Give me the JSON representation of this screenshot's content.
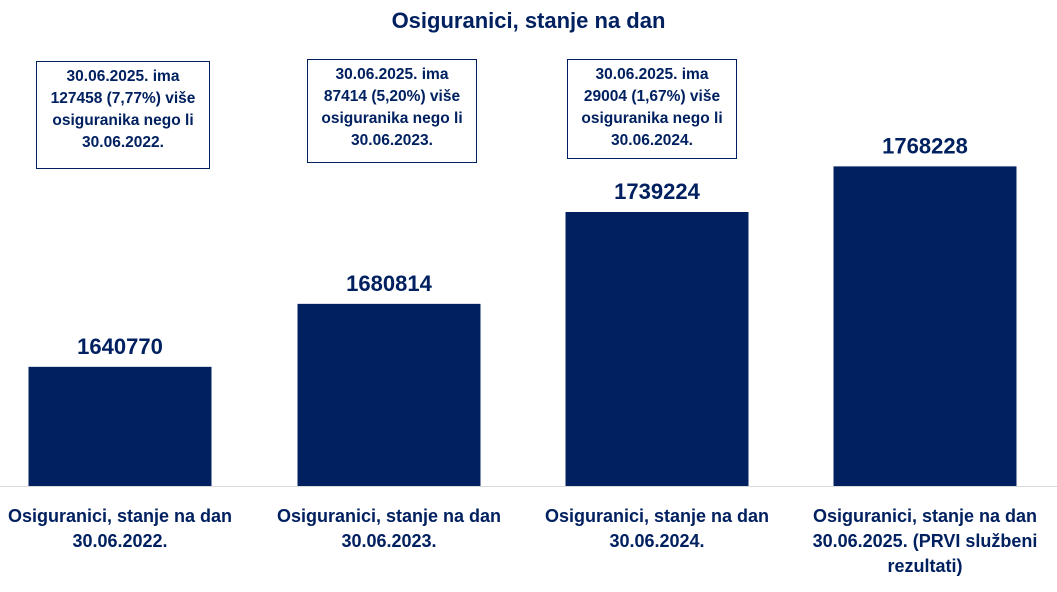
{
  "chart_data": {
    "type": "bar",
    "title": "Osiguranici, stanje na dan",
    "categories": [
      [
        "Osiguranici, stanje na dan",
        "30.06.2022."
      ],
      [
        "Osiguranici, stanje na dan",
        "30.06.2023."
      ],
      [
        "Osiguranici, stanje na dan",
        "30.06.2024."
      ],
      [
        "Osiguranici, stanje na dan",
        "30.06.2025. (PRVI službeni",
        "rezultati)"
      ]
    ],
    "values": [
      1640770,
      1680814,
      1739224,
      1768228
    ],
    "data_labels": [
      "1640770",
      "1680814",
      "1739224",
      "1768228"
    ],
    "bar_color": "#002060",
    "baseline_value": 1565000,
    "top_value": 1785000,
    "grid": false,
    "annotations": [
      [
        "30.06.2025. ima",
        "127458 (7,77%) više",
        "osiguranika nego li",
        "30.06.2022."
      ],
      [
        "30.06.2025. ima",
        "87414 (5,20%) više",
        "osiguranika nego li",
        "30.06.2023."
      ],
      [
        "30.06.2025. ima",
        "29004 (1,67%) više",
        "osiguranika nego li",
        "30.06.2024."
      ]
    ]
  }
}
